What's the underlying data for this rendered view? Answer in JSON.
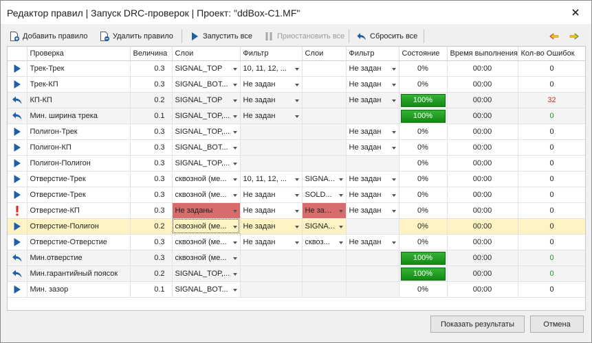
{
  "window": {
    "title": "Редактор правил | Запуск DRC-проверок | Проект: \"ddBox-C1.MF\""
  },
  "toolbar": {
    "add_rule": "Добавить правило",
    "delete_rule": "Удалить правило",
    "run_all": "Запустить все",
    "pause_all": "Приостановить все",
    "reset_all": "Сбросить все"
  },
  "columns": [
    "Проверка",
    "Величина",
    "Слои",
    "Фильтр",
    "Слои",
    "Фильтр",
    "Состояние",
    "Время выполнения",
    "Кол-во Ошибок"
  ],
  "rows": [
    {
      "icon": "play",
      "name": "Трек-Трек",
      "value": "0.3",
      "layers1": "SIGNAL_TOP",
      "filter1": "10, 11, 12, ...",
      "layers2": "",
      "filter2": "Не задан",
      "state": "0%",
      "progress": 0,
      "time": "00:00",
      "errors": "0"
    },
    {
      "icon": "play",
      "name": "Трек-КП",
      "value": "0.3",
      "layers1": "SIGNAL_BOT...",
      "filter1": "Не задан",
      "layers2": "",
      "filter2": "Не задан",
      "state": "0%",
      "progress": 0,
      "time": "00:00",
      "errors": "0"
    },
    {
      "icon": "reset",
      "name": "КП-КП",
      "value": "0.2",
      "layers1": "SIGNAL_TOP",
      "filter1": "Не задан",
      "layers2": "",
      "filter2": "Не задан",
      "state": "100%",
      "progress": 100,
      "time": "00:00",
      "errors": "32",
      "errors_color": "red"
    },
    {
      "icon": "reset",
      "name": "Мин. ширина трека",
      "value": "0.1",
      "layers1": "SIGNAL_TOP,...",
      "filter1": "Не задан",
      "layers2": null,
      "filter2": null,
      "state": "100%",
      "progress": 100,
      "time": "00:00",
      "errors": "0",
      "errors_color": "green"
    },
    {
      "icon": "play",
      "name": "Полигон-Трек",
      "value": "0.3",
      "layers1": "SIGNAL_TOP,...",
      "filter1": null,
      "layers2": null,
      "filter2": "Не задан",
      "state": "0%",
      "progress": 0,
      "time": "00:00",
      "errors": "0"
    },
    {
      "icon": "play",
      "name": "Полигон-КП",
      "value": "0.3",
      "layers1": "SIGNAL_BOT...",
      "filter1": null,
      "layers2": null,
      "filter2": "Не задан",
      "state": "0%",
      "progress": 0,
      "time": "00:00",
      "errors": "0"
    },
    {
      "icon": "play",
      "name": "Полигон-Полигон",
      "value": "0.3",
      "layers1": "SIGNAL_TOP,...",
      "filter1": null,
      "layers2": null,
      "filter2": null,
      "state": "0%",
      "progress": 0,
      "time": "00:00",
      "errors": "0"
    },
    {
      "icon": "play",
      "name": "Отверстие-Трек",
      "value": "0.3",
      "layers1": "сквозной (ме...",
      "filter1": "10, 11, 12, ...",
      "layers2": "SIGNA...",
      "filter2": "Не задан",
      "state": "0%",
      "progress": 0,
      "time": "00:00",
      "errors": "0"
    },
    {
      "icon": "play",
      "name": "Отверстие-Трек",
      "value": "0.3",
      "layers1": "сквозной (ме...",
      "filter1": "Не задан",
      "layers2": "SOLD...",
      "filter2": "Не задан",
      "state": "0%",
      "progress": 0,
      "time": "00:00",
      "errors": "0"
    },
    {
      "icon": "warn",
      "name": "Отверстие-КП",
      "value": "0.3",
      "layers1": "Не заданы",
      "layers1_error": true,
      "filter1": "Не задан",
      "layers2": "Не задан",
      "layers2_error": true,
      "filter2": "Не задан",
      "state": "0%",
      "progress": 0,
      "time": "00:00",
      "errors": "0"
    },
    {
      "icon": "play",
      "name": "Отверстие-Полигон",
      "value": "0.2",
      "layers1": "сквозной (ме...",
      "layers1_focus": true,
      "filter1": "Не задан",
      "layers2": "SIGNA...",
      "filter2": null,
      "state": "0%",
      "progress": 0,
      "time": "00:00",
      "errors": "0",
      "selected": true
    },
    {
      "icon": "play",
      "name": "Отверстие-Отверстие",
      "value": "0.3",
      "layers1": "сквозной (ме...",
      "filter1": "Не задан",
      "layers2": "сквоз...",
      "filter2": "Не задан",
      "state": "0%",
      "progress": 0,
      "time": "00:00",
      "errors": "0"
    },
    {
      "icon": "reset",
      "name": "Мин.отверстие",
      "value": "0.3",
      "layers1": "сквозной (ме...",
      "filter1": null,
      "layers2": null,
      "filter2": null,
      "state": "100%",
      "progress": 100,
      "time": "00:00",
      "errors": "0",
      "errors_color": "green"
    },
    {
      "icon": "reset",
      "name": "Мин.гарантийный поясок",
      "value": "0.2",
      "layers1": "SIGNAL_TOP,...",
      "filter1": null,
      "layers2": null,
      "filter2": null,
      "state": "100%",
      "progress": 100,
      "time": "00:00",
      "errors": "0",
      "errors_color": "green"
    },
    {
      "icon": "play",
      "name": "Мин. зазор",
      "value": "0.1",
      "layers1": "SIGNAL_BOT...",
      "filter1": null,
      "layers2": null,
      "filter2": null,
      "state": "0%",
      "progress": 0,
      "time": "00:00",
      "errors": "0"
    }
  ],
  "footer": {
    "show_results": "Показать результаты",
    "cancel": "Отмена"
  },
  "colors": {
    "accent": "#1f5fa6",
    "progress": "#1e9a1e",
    "error_cell": "#d86c6c",
    "selected_row": "#fdf3c3",
    "errors_red": "#d0302a",
    "errors_green": "#1f8f2a",
    "warn": "#e0211b",
    "toolbar_yellow": "#f0c020"
  }
}
